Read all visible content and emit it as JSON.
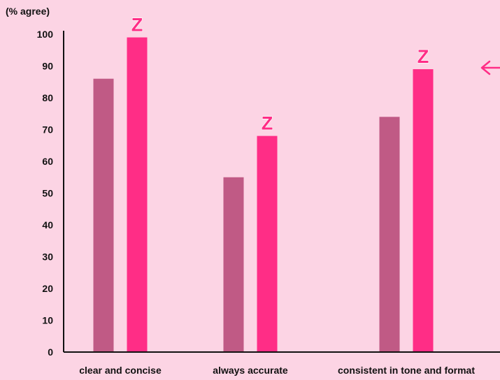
{
  "chart_data": {
    "type": "bar",
    "ylabel": "(% agree)",
    "ylim": [
      0,
      100
    ],
    "yticks": [
      0,
      10,
      20,
      30,
      40,
      50,
      60,
      70,
      80,
      90,
      100
    ],
    "categories": [
      "clear and concise",
      "always accurate",
      "consistent in tone and format"
    ],
    "series": [
      {
        "values": [
          86,
          55,
          74
        ],
        "color": "#c05a85"
      },
      {
        "values": [
          99,
          68,
          89
        ],
        "color": "#ff2d86",
        "marker": "Z"
      }
    ],
    "grid": false,
    "legend": "none",
    "annotations": [
      "arrow pointing left at right edge"
    ]
  }
}
